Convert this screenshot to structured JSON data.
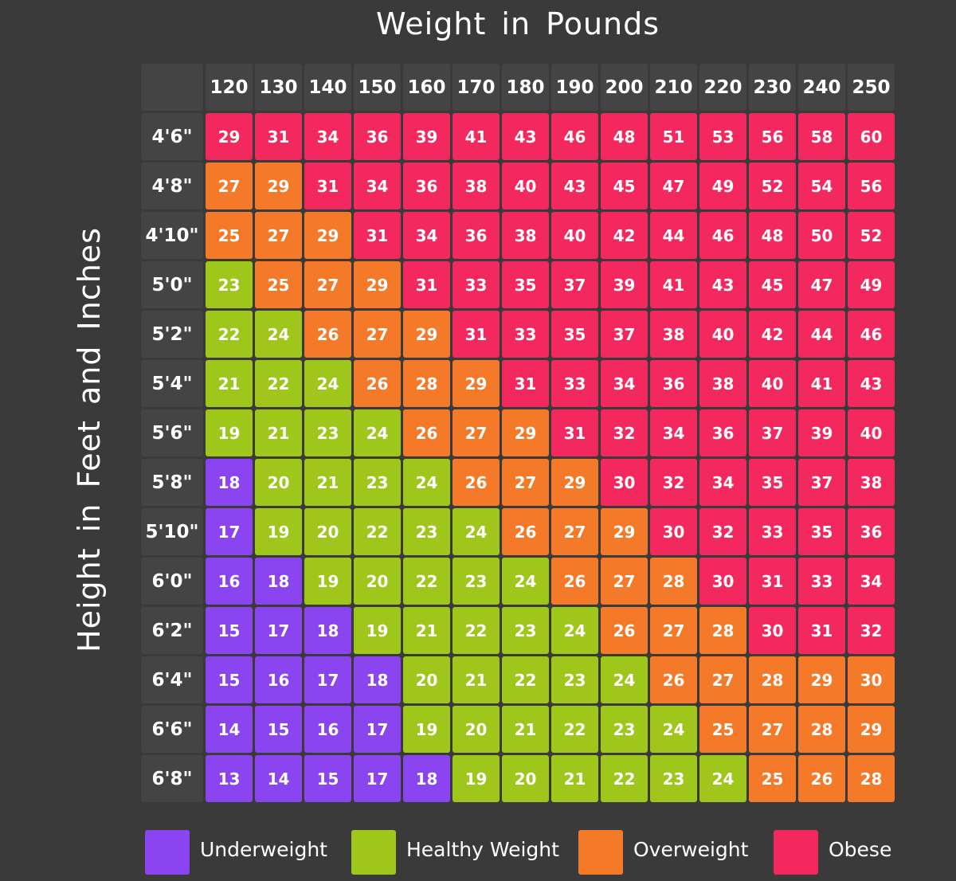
{
  "chart_data": {
    "type": "heatmap",
    "title": "Weight in Pounds",
    "ylabel": "Height in Feet and Inches",
    "columns": [
      "120",
      "130",
      "140",
      "150",
      "160",
      "170",
      "180",
      "190",
      "200",
      "210",
      "220",
      "230",
      "240",
      "250"
    ],
    "rows": [
      "4'6\"",
      "4'8\"",
      "4'10\"",
      "5'0\"",
      "5'2\"",
      "5'4\"",
      "5'6\"",
      "5'8\"",
      "5'10\"",
      "6'0\"",
      "6'2\"",
      "6'4\"",
      "6'6\"",
      "6'8\""
    ],
    "values": [
      [
        29,
        31,
        34,
        36,
        39,
        41,
        43,
        46,
        48,
        51,
        53,
        56,
        58,
        60
      ],
      [
        27,
        29,
        31,
        34,
        36,
        38,
        40,
        43,
        45,
        47,
        49,
        52,
        54,
        56
      ],
      [
        25,
        27,
        29,
        31,
        34,
        36,
        38,
        40,
        42,
        44,
        46,
        48,
        50,
        52
      ],
      [
        23,
        25,
        27,
        29,
        31,
        33,
        35,
        37,
        39,
        41,
        43,
        45,
        47,
        49
      ],
      [
        22,
        24,
        26,
        27,
        29,
        31,
        33,
        35,
        37,
        38,
        40,
        42,
        44,
        46
      ],
      [
        21,
        22,
        24,
        26,
        28,
        29,
        31,
        33,
        34,
        36,
        38,
        40,
        41,
        43
      ],
      [
        19,
        21,
        23,
        24,
        26,
        27,
        29,
        31,
        32,
        34,
        36,
        37,
        39,
        40
      ],
      [
        18,
        20,
        21,
        23,
        24,
        26,
        27,
        29,
        30,
        32,
        34,
        35,
        37,
        38
      ],
      [
        17,
        19,
        20,
        22,
        23,
        24,
        26,
        27,
        29,
        30,
        32,
        33,
        35,
        36
      ],
      [
        16,
        18,
        19,
        20,
        22,
        23,
        24,
        26,
        27,
        28,
        30,
        31,
        33,
        34
      ],
      [
        15,
        17,
        18,
        19,
        21,
        22,
        23,
        24,
        26,
        27,
        28,
        30,
        31,
        32
      ],
      [
        15,
        16,
        17,
        18,
        20,
        21,
        22,
        23,
        24,
        26,
        27,
        28,
        29,
        30
      ],
      [
        14,
        15,
        16,
        17,
        19,
        20,
        21,
        22,
        23,
        24,
        25,
        27,
        28,
        29
      ],
      [
        13,
        14,
        15,
        17,
        18,
        19,
        20,
        21,
        22,
        23,
        24,
        25,
        26,
        28
      ]
    ],
    "categories_map": [
      "OOOOOOOOOOOOOO",
      "VVOOOOOOOOOOOO",
      "VVVOOOOOOOOOOO",
      "HVVVOOOOOOOOOO",
      "HHVVVOOOOOOOOO",
      "HHHVVVOOOOOOOO",
      "HHHHVVVOOOOOOO",
      "UHHHHVVVOOOOOO",
      "UHHHHHVVVOOOOO",
      "UUHHHHHVVVOOOO",
      "UUUHHHHHVVVOOO",
      "UUUUHHHHHVVVVV",
      "UUUUHHHHHHVVVV",
      "UUUUUHHHHHHVVV"
    ],
    "legend": [
      {
        "code": "U",
        "label": "Underweight",
        "color": "#8a45f0"
      },
      {
        "code": "H",
        "label": "Healthy Weight",
        "color": "#9ec61b"
      },
      {
        "code": "V",
        "label": "Overweight",
        "color": "#f47a2a"
      },
      {
        "code": "O",
        "label": "Obese",
        "color": "#f2285e"
      }
    ]
  }
}
